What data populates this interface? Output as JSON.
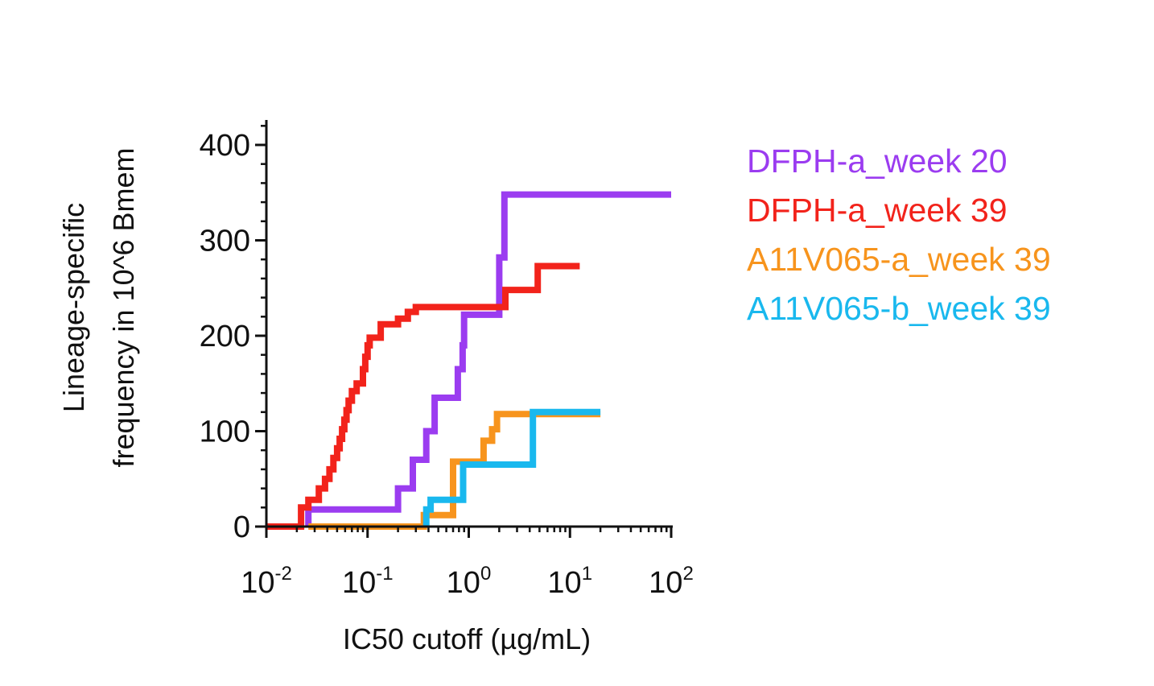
{
  "chart_data": {
    "type": "line",
    "step": true,
    "xlabel": "IC50 cutoff (µg/mL)",
    "ylabel": [
      "Lineage-specific",
      "frequency in 10^6 Bmem"
    ],
    "xscale": "log",
    "xlim": [
      0.01,
      100
    ],
    "ylim": [
      0,
      420
    ],
    "y_ticks": [
      0,
      100,
      200,
      300,
      400
    ],
    "y_tick_labels": [
      "0",
      "100",
      "200",
      "300",
      "400"
    ],
    "x_ticks": [
      0.01,
      0.1,
      1,
      10,
      100
    ],
    "x_tick_labels": [
      {
        "base": "10",
        "exp": "-2"
      },
      {
        "base": "10",
        "exp": "-1"
      },
      {
        "base": "10",
        "exp": "0"
      },
      {
        "base": "10",
        "exp": "1"
      },
      {
        "base": "10",
        "exp": "2"
      }
    ],
    "grid": false,
    "legend_position": "right",
    "series": [
      {
        "name": "DFPH-a_week 20",
        "color": "#9b3cf0",
        "points": [
          [
            0.026,
            0
          ],
          [
            0.026,
            18
          ],
          [
            0.2,
            18
          ],
          [
            0.2,
            40
          ],
          [
            0.28,
            40
          ],
          [
            0.28,
            70
          ],
          [
            0.38,
            70
          ],
          [
            0.38,
            100
          ],
          [
            0.46,
            100
          ],
          [
            0.46,
            135
          ],
          [
            0.78,
            135
          ],
          [
            0.78,
            165
          ],
          [
            0.87,
            165
          ],
          [
            0.87,
            190
          ],
          [
            0.9,
            190
          ],
          [
            0.9,
            222
          ],
          [
            2.0,
            222
          ],
          [
            2.0,
            282
          ],
          [
            2.25,
            282
          ],
          [
            2.25,
            348
          ],
          [
            100,
            348
          ]
        ]
      },
      {
        "name": "DFPH-a_week 39",
        "color": "#f2231b",
        "points": [
          [
            0.01,
            0
          ],
          [
            0.022,
            0
          ],
          [
            0.022,
            20
          ],
          [
            0.026,
            20
          ],
          [
            0.026,
            28
          ],
          [
            0.033,
            28
          ],
          [
            0.033,
            40
          ],
          [
            0.038,
            40
          ],
          [
            0.038,
            50
          ],
          [
            0.042,
            50
          ],
          [
            0.042,
            60
          ],
          [
            0.046,
            60
          ],
          [
            0.046,
            72
          ],
          [
            0.05,
            72
          ],
          [
            0.05,
            82
          ],
          [
            0.053,
            82
          ],
          [
            0.053,
            92
          ],
          [
            0.056,
            92
          ],
          [
            0.056,
            102
          ],
          [
            0.059,
            102
          ],
          [
            0.059,
            112
          ],
          [
            0.062,
            112
          ],
          [
            0.062,
            122
          ],
          [
            0.065,
            122
          ],
          [
            0.065,
            132
          ],
          [
            0.07,
            132
          ],
          [
            0.07,
            142
          ],
          [
            0.078,
            142
          ],
          [
            0.078,
            150
          ],
          [
            0.09,
            150
          ],
          [
            0.09,
            165
          ],
          [
            0.095,
            165
          ],
          [
            0.095,
            178
          ],
          [
            0.1,
            178
          ],
          [
            0.1,
            190
          ],
          [
            0.105,
            190
          ],
          [
            0.105,
            198
          ],
          [
            0.135,
            198
          ],
          [
            0.135,
            212
          ],
          [
            0.2,
            212
          ],
          [
            0.2,
            218
          ],
          [
            0.25,
            218
          ],
          [
            0.25,
            225
          ],
          [
            0.3,
            225
          ],
          [
            0.3,
            230
          ],
          [
            2.3,
            230
          ],
          [
            2.3,
            248
          ],
          [
            4.8,
            248
          ],
          [
            4.8,
            273
          ],
          [
            12.5,
            273
          ]
        ]
      },
      {
        "name": "A11V065-a_week 39",
        "color": "#f7941d",
        "points": [
          [
            0.026,
            0
          ],
          [
            0.36,
            0
          ],
          [
            0.36,
            12
          ],
          [
            0.7,
            12
          ],
          [
            0.7,
            68
          ],
          [
            1.4,
            68
          ],
          [
            1.4,
            90
          ],
          [
            1.7,
            90
          ],
          [
            1.7,
            102
          ],
          [
            1.9,
            102
          ],
          [
            1.9,
            118
          ],
          [
            20,
            118
          ]
        ]
      },
      {
        "name": "A11V065-b_week 39",
        "color": "#19b8ee",
        "points": [
          [
            0.38,
            0
          ],
          [
            0.38,
            18
          ],
          [
            0.42,
            18
          ],
          [
            0.42,
            28
          ],
          [
            0.88,
            28
          ],
          [
            0.88,
            65
          ],
          [
            4.3,
            65
          ],
          [
            4.3,
            120
          ],
          [
            20,
            120
          ]
        ]
      }
    ]
  }
}
